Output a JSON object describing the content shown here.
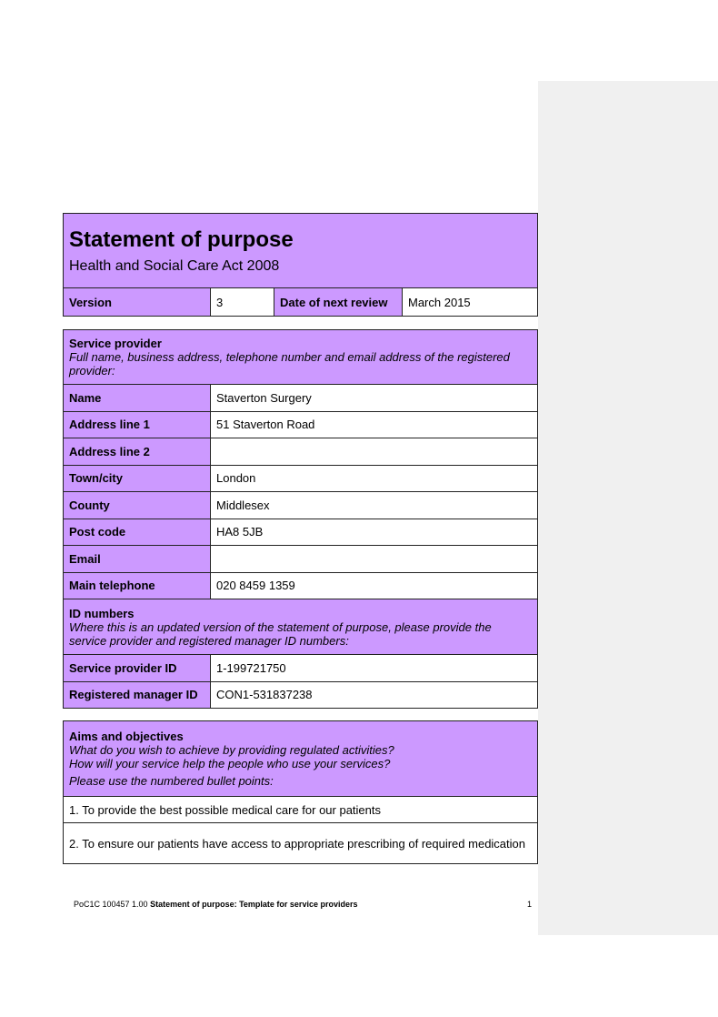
{
  "header": {
    "title": "Statement of purpose",
    "subtitle": "Health and Social Care Act 2008",
    "version_label": "Version",
    "version": "3",
    "review_label": "Date of next review",
    "review": "March 2015"
  },
  "provider": {
    "heading": "Service provider",
    "instructions": "Full name, business address, telephone number and email address of the registered provider:",
    "rows": [
      {
        "label": "Name",
        "value": "Staverton Surgery"
      },
      {
        "label": "Address line 1",
        "value": "51 Staverton Road"
      },
      {
        "label": "Address line 2",
        "value": ""
      },
      {
        "label": "Town/city",
        "value": "London"
      },
      {
        "label": "County",
        "value": "Middlesex"
      },
      {
        "label": "Post code",
        "value": "HA8 5JB"
      },
      {
        "label": "Email",
        "value": ""
      },
      {
        "label": "Main telephone",
        "value": "020 8459 1359"
      }
    ]
  },
  "ids": {
    "heading": "ID numbers",
    "instructions": "Where this is an updated version of the statement of purpose, please provide the service provider and registered manager ID numbers:",
    "rows": [
      {
        "label": "Service provider ID",
        "value": "1-199721750"
      },
      {
        "label": "Registered manager ID",
        "value": "CON1-531837238"
      }
    ]
  },
  "aims": {
    "heading": "Aims and objectives",
    "q1": "What do you wish to achieve by providing regulated activities?",
    "q2": "How will your service help the people who use your services?",
    "q3": "Please use the numbered bullet points:",
    "items": [
      "1. To provide the best possible medical care for our patients",
      "2. To ensure our patients have access to appropriate prescribing of required medication"
    ]
  },
  "footer": {
    "code": "PoC1C 100457 1.00",
    "title": "Statement of purpose: Template for service providers",
    "page": "1"
  }
}
